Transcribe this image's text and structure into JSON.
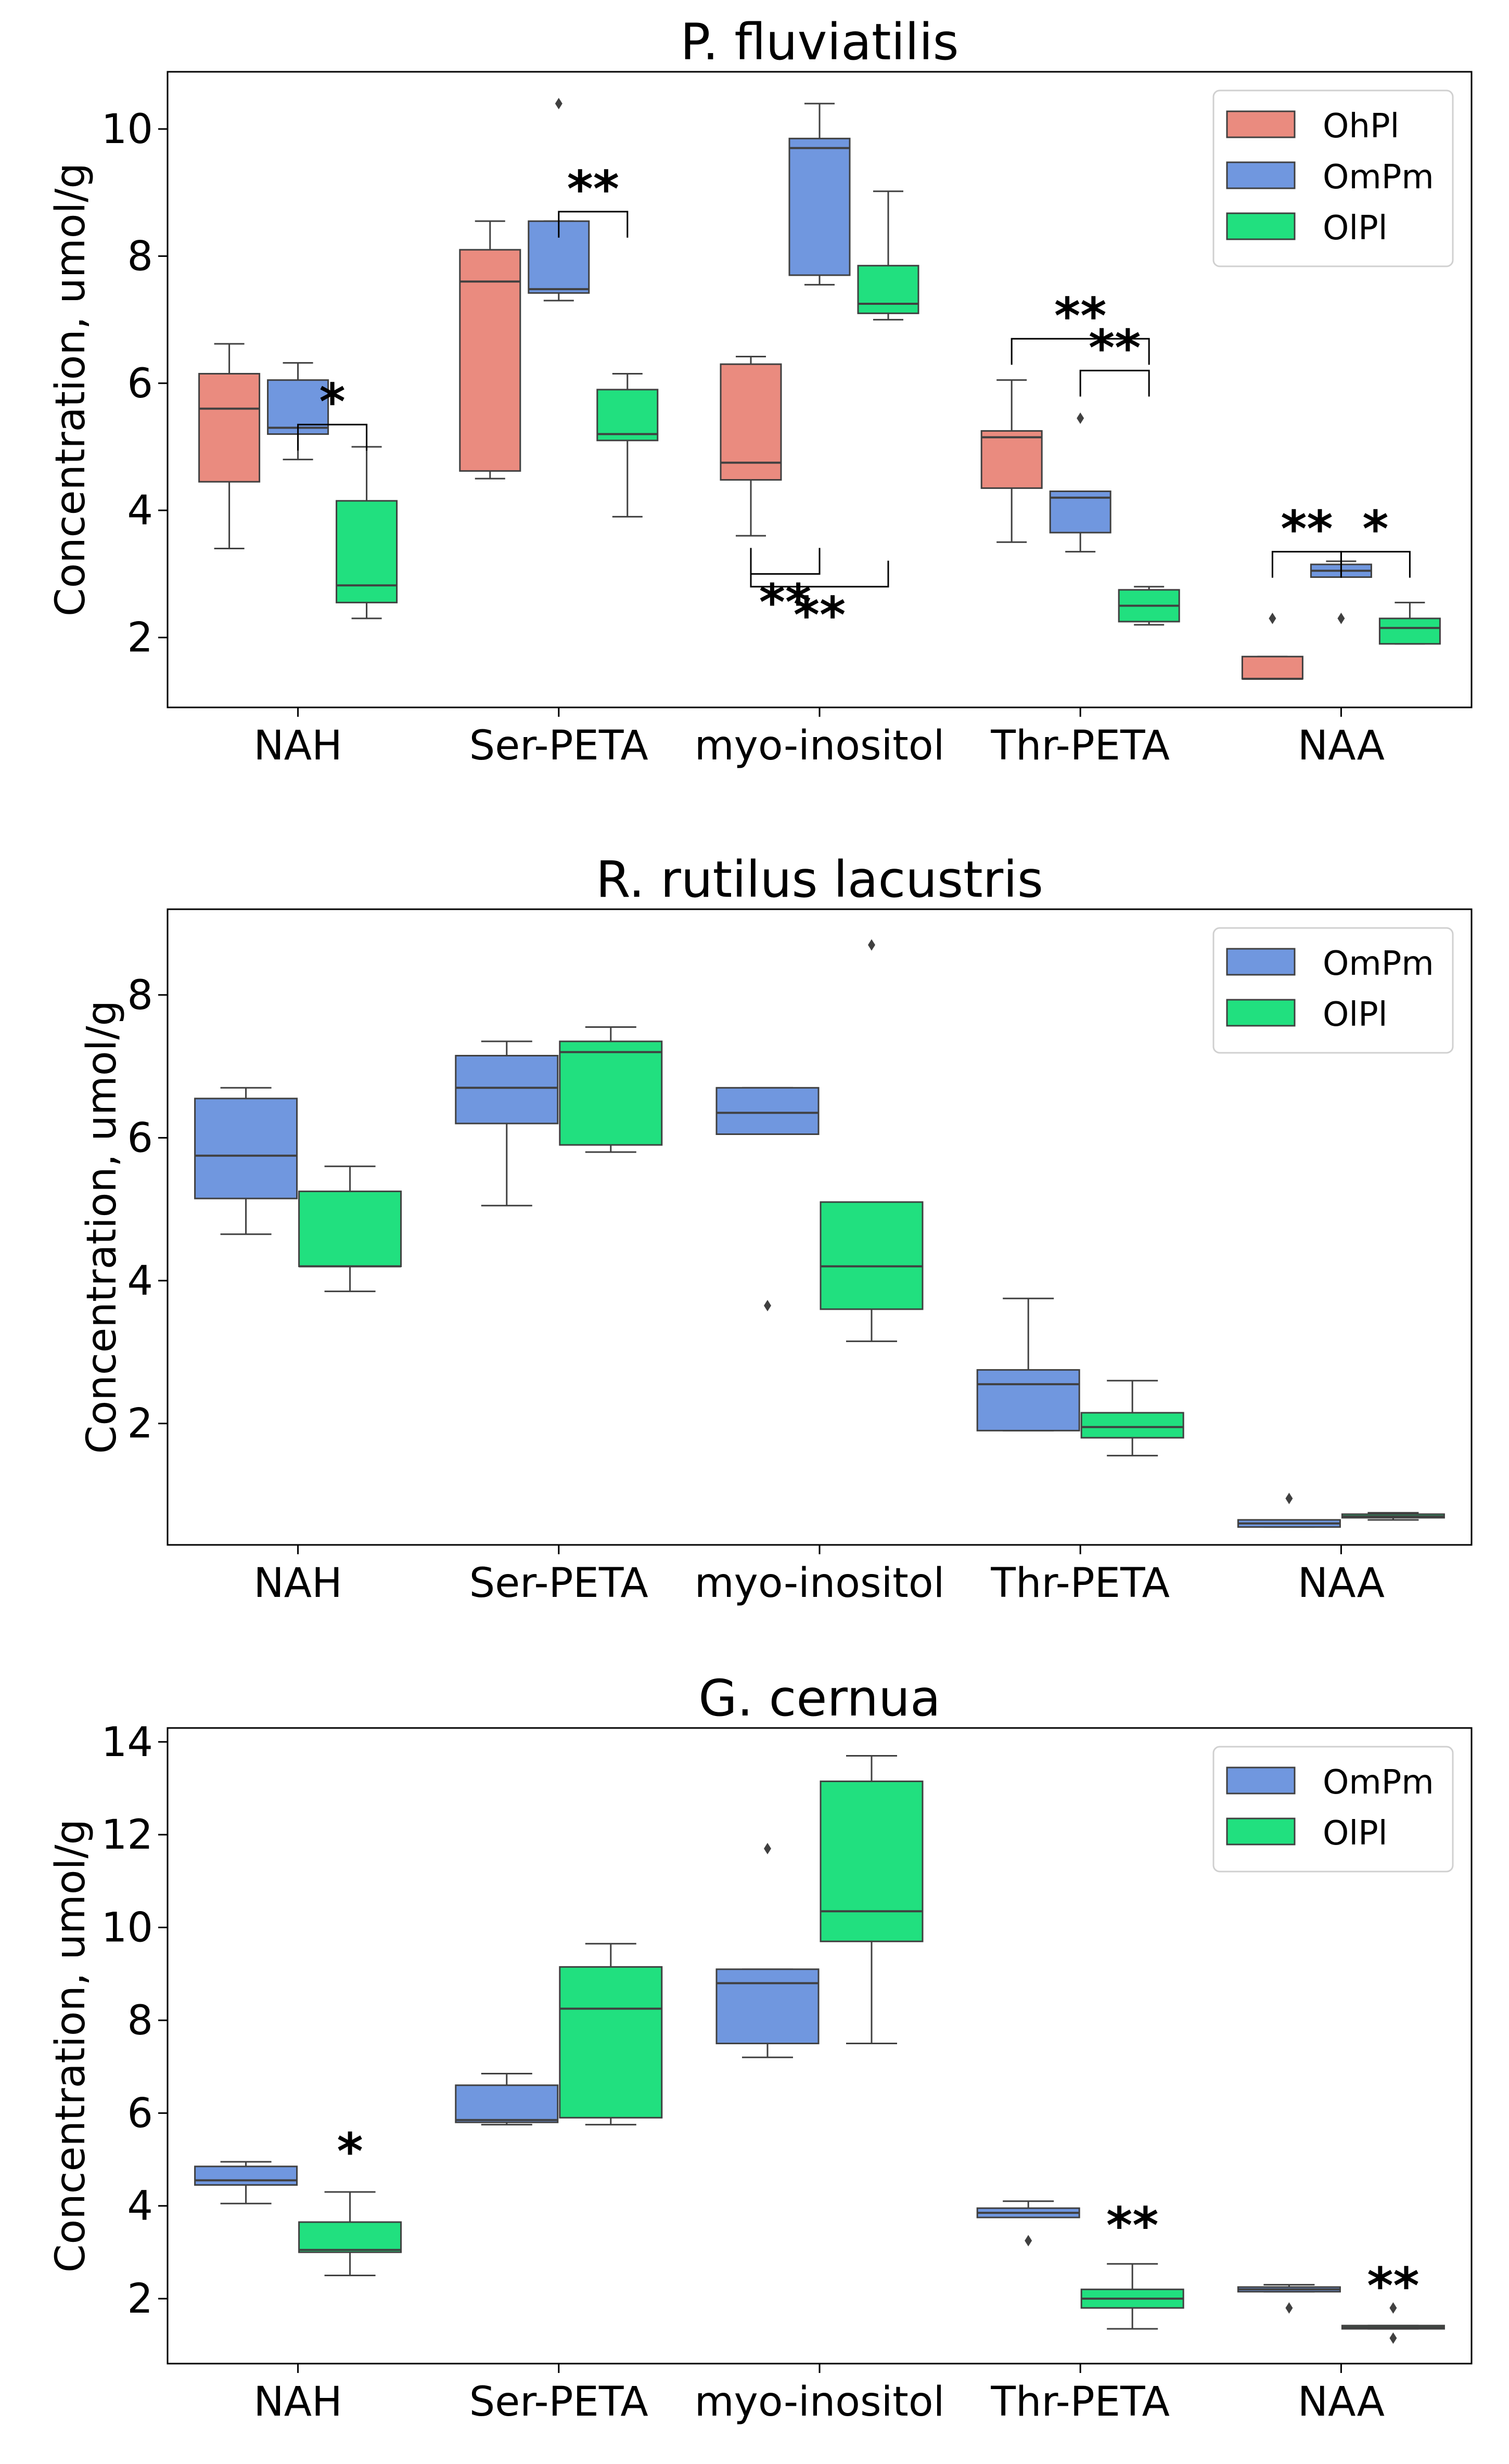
{
  "colors": {
    "OhPl": "#EA8B7F",
    "OmPm": "#7097DF",
    "OlPl": "#21E07F",
    "edge": "#404040"
  },
  "chart_data": [
    {
      "type": "box",
      "title": "P. fluviatilis",
      "ylabel": "Concentration, umol/g",
      "ylim": [
        0.9,
        10.9
      ],
      "yticks": [
        "2",
        "4",
        "6",
        "8",
        "10"
      ],
      "categories": [
        "NAH",
        "Ser-PETA",
        "myo-inositol",
        "Thr-PETA",
        "NAA"
      ],
      "legend": [
        "OhPl",
        "OmPm",
        "OlPl"
      ],
      "legend_position": "upper-right",
      "series": [
        {
          "name": "OhPl",
          "boxes": [
            {
              "whislo": 3.4,
              "q1": 4.45,
              "med": 5.6,
              "q3": 6.15,
              "whishi": 6.62,
              "fliers": []
            },
            {
              "whislo": 4.5,
              "q1": 4.62,
              "med": 7.6,
              "q3": 8.1,
              "whishi": 8.55,
              "fliers": []
            },
            {
              "whislo": 3.6,
              "q1": 4.48,
              "med": 4.75,
              "q3": 6.3,
              "whishi": 6.42,
              "fliers": []
            },
            {
              "whislo": 3.5,
              "q1": 4.35,
              "med": 5.15,
              "q3": 5.25,
              "whishi": 6.05,
              "fliers": []
            },
            {
              "whislo": 1.35,
              "q1": 1.35,
              "med": 1.35,
              "q3": 1.7,
              "whishi": 1.7,
              "fliers": [
                2.3
              ]
            }
          ]
        },
        {
          "name": "OmPm",
          "boxes": [
            {
              "whislo": 4.8,
              "q1": 5.2,
              "med": 5.3,
              "q3": 6.05,
              "whishi": 6.32,
              "fliers": []
            },
            {
              "whislo": 7.3,
              "q1": 7.42,
              "med": 7.48,
              "q3": 8.55,
              "whishi": 8.55,
              "fliers": [
                10.4
              ]
            },
            {
              "whislo": 7.55,
              "q1": 7.7,
              "med": 9.7,
              "q3": 9.85,
              "whishi": 10.4,
              "fliers": []
            },
            {
              "whislo": 3.35,
              "q1": 3.65,
              "med": 4.2,
              "q3": 4.3,
              "whishi": 4.3,
              "fliers": [
                5.45
              ]
            },
            {
              "whislo": 2.95,
              "q1": 2.95,
              "med": 3.05,
              "q3": 3.15,
              "whishi": 3.2,
              "fliers": [
                2.3
              ]
            }
          ]
        },
        {
          "name": "OlPl",
          "boxes": [
            {
              "whislo": 2.3,
              "q1": 2.55,
              "med": 2.82,
              "q3": 4.15,
              "whishi": 5.0,
              "fliers": []
            },
            {
              "whislo": 3.9,
              "q1": 5.1,
              "med": 5.2,
              "q3": 5.9,
              "whishi": 6.15,
              "fliers": []
            },
            {
              "whislo": 7.0,
              "q1": 7.1,
              "med": 7.25,
              "q3": 7.85,
              "whishi": 9.02,
              "fliers": []
            },
            {
              "whislo": 2.2,
              "q1": 2.25,
              "med": 2.5,
              "q3": 2.75,
              "whishi": 2.8,
              "fliers": []
            },
            {
              "whislo": 1.9,
              "q1": 1.9,
              "med": 2.15,
              "q3": 2.3,
              "whishi": 2.55,
              "fliers": []
            }
          ]
        }
      ],
      "annotations": [
        {
          "cat": 0,
          "from": 1,
          "to": 2,
          "y": 5.35,
          "text": "*",
          "dir": "up"
        },
        {
          "cat": 1,
          "from": 1,
          "to": 2,
          "y": 8.7,
          "text": "**",
          "dir": "up"
        },
        {
          "cat": 2,
          "from": 0,
          "to": 1,
          "y": 3.0,
          "text": "**",
          "dir": "down"
        },
        {
          "cat": 2,
          "from": 0,
          "to": 2,
          "y": 2.8,
          "text": "**",
          "dir": "down"
        },
        {
          "cat": 3,
          "from": 0,
          "to": 2,
          "y": 6.7,
          "text": "**",
          "dir": "up"
        },
        {
          "cat": 3,
          "from": 1,
          "to": 2,
          "y": 6.2,
          "text": "**",
          "dir": "up"
        },
        {
          "cat": 4,
          "from": 0,
          "to": 1,
          "y": 3.35,
          "text": "**",
          "dir": "up"
        },
        {
          "cat": 4,
          "from": 1,
          "to": 2,
          "y": 3.35,
          "text": "*",
          "dir": "up"
        }
      ]
    },
    {
      "type": "box",
      "title": "R. rutilus lacustris",
      "ylabel": "Concentration, umol/g",
      "ylim": [
        0.3,
        9.2
      ],
      "yticks": [
        "2",
        "4",
        "6",
        "8"
      ],
      "categories": [
        "NAH",
        "Ser-PETA",
        "myo-inositol",
        "Thr-PETA",
        "NAA"
      ],
      "legend": [
        "OmPm",
        "OlPl"
      ],
      "legend_position": "upper-right",
      "series": [
        {
          "name": "OmPm",
          "boxes": [
            {
              "whislo": 4.65,
              "q1": 5.15,
              "med": 5.75,
              "q3": 6.55,
              "whishi": 6.7,
              "fliers": []
            },
            {
              "whislo": 5.05,
              "q1": 6.2,
              "med": 6.7,
              "q3": 7.15,
              "whishi": 7.35,
              "fliers": []
            },
            {
              "whislo": 6.05,
              "q1": 6.05,
              "med": 6.35,
              "q3": 6.7,
              "whishi": 6.7,
              "fliers": [
                3.65
              ]
            },
            {
              "whislo": 1.9,
              "q1": 1.9,
              "med": 2.55,
              "q3": 2.75,
              "whishi": 3.75,
              "fliers": []
            },
            {
              "whislo": 0.55,
              "q1": 0.55,
              "med": 0.6,
              "q3": 0.65,
              "whishi": 0.65,
              "fliers": [
                0.95
              ]
            }
          ]
        },
        {
          "name": "OlPl",
          "boxes": [
            {
              "whislo": 3.85,
              "q1": 4.2,
              "med": 4.2,
              "q3": 5.25,
              "whishi": 5.6,
              "fliers": []
            },
            {
              "whislo": 5.8,
              "q1": 5.9,
              "med": 7.2,
              "q3": 7.35,
              "whishi": 7.55,
              "fliers": []
            },
            {
              "whislo": 3.15,
              "q1": 3.6,
              "med": 4.2,
              "q3": 5.1,
              "whishi": 5.1,
              "fliers": [
                8.7
              ]
            },
            {
              "whislo": 1.55,
              "q1": 1.8,
              "med": 1.95,
              "q3": 2.15,
              "whishi": 2.6,
              "fliers": []
            },
            {
              "whislo": 0.65,
              "q1": 0.68,
              "med": 0.7,
              "q3": 0.73,
              "whishi": 0.75,
              "fliers": []
            }
          ]
        }
      ],
      "annotations": []
    },
    {
      "type": "box",
      "title": "G. cernua",
      "ylabel": "Concentration, umol/g",
      "ylim": [
        0.6,
        14.3
      ],
      "yticks": [
        "2",
        "4",
        "6",
        "8",
        "10",
        "12",
        "14"
      ],
      "categories": [
        "NAH",
        "Ser-PETA",
        "myo-inositol",
        "Thr-PETA",
        "NAA"
      ],
      "legend": [
        "OmPm",
        "OlPl"
      ],
      "legend_position": "upper-right",
      "series": [
        {
          "name": "OmPm",
          "boxes": [
            {
              "whislo": 4.05,
              "q1": 4.45,
              "med": 4.55,
              "q3": 4.85,
              "whishi": 4.95,
              "fliers": []
            },
            {
              "whislo": 5.75,
              "q1": 5.8,
              "med": 5.85,
              "q3": 6.6,
              "whishi": 6.85,
              "fliers": []
            },
            {
              "whislo": 7.2,
              "q1": 7.5,
              "med": 8.8,
              "q3": 9.1,
              "whishi": 9.1,
              "fliers": [
                11.7
              ]
            },
            {
              "whislo": 3.75,
              "q1": 3.75,
              "med": 3.85,
              "q3": 3.95,
              "whishi": 4.1,
              "fliers": [
                3.25
              ]
            },
            {
              "whislo": 2.15,
              "q1": 2.15,
              "med": 2.2,
              "q3": 2.25,
              "whishi": 2.3,
              "fliers": [
                1.8
              ]
            }
          ]
        },
        {
          "name": "OlPl",
          "boxes": [
            {
              "whislo": 2.5,
              "q1": 3.0,
              "med": 3.05,
              "q3": 3.65,
              "whishi": 4.3,
              "fliers": []
            },
            {
              "whislo": 5.75,
              "q1": 5.9,
              "med": 8.25,
              "q3": 9.15,
              "whishi": 9.65,
              "fliers": []
            },
            {
              "whislo": 7.5,
              "q1": 9.7,
              "med": 10.35,
              "q3": 13.15,
              "whishi": 13.7,
              "fliers": []
            },
            {
              "whislo": 1.35,
              "q1": 1.8,
              "med": 2.0,
              "q3": 2.2,
              "whishi": 2.75,
              "fliers": []
            },
            {
              "whislo": 1.35,
              "q1": 1.35,
              "med": 1.38,
              "q3": 1.42,
              "whishi": 1.42,
              "fliers": [
                1.8,
                1.15
              ]
            }
          ]
        }
      ],
      "annotations": [
        {
          "cat": 0,
          "from": 1,
          "to": 1,
          "y": 4.8,
          "text": "*",
          "dir": "star"
        },
        {
          "cat": 3,
          "from": 1,
          "to": 1,
          "y": 3.2,
          "text": "**",
          "dir": "star"
        },
        {
          "cat": 4,
          "from": 1,
          "to": 1,
          "y": 1.9,
          "text": "**",
          "dir": "star"
        }
      ]
    }
  ]
}
